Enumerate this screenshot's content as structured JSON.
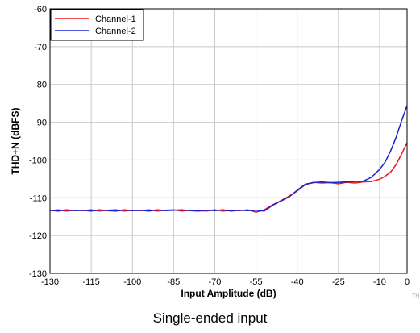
{
  "chart_data": {
    "type": "line",
    "title": "",
    "caption": "Single-ended input",
    "xlabel": "Input Amplitude (dB)",
    "ylabel": "THD+N (dBFS)",
    "xlim": [
      -130,
      0
    ],
    "ylim": [
      -130,
      -60
    ],
    "xticks": [
      -130,
      -115,
      -100,
      -85,
      -70,
      -55,
      -40,
      -25,
      -10,
      0
    ],
    "yticks": [
      -60,
      -70,
      -80,
      -90,
      -100,
      -110,
      -120,
      -130
    ],
    "grid": true,
    "legend_position": "top-left",
    "series": [
      {
        "name": "Channel-1",
        "color": "#e8171f",
        "x": [
          -130,
          -127,
          -124,
          -121,
          -118,
          -115,
          -112,
          -109,
          -106,
          -103,
          -100,
          -97,
          -94,
          -91,
          -88,
          -85,
          -82,
          -79,
          -76,
          -73,
          -70,
          -67,
          -64,
          -61,
          -58,
          -55,
          -52,
          -49,
          -46,
          -43,
          -40,
          -37,
          -34,
          -31,
          -28,
          -25,
          -22,
          -19,
          -16,
          -13,
          -10,
          -8,
          -6,
          -4,
          -2,
          0
        ],
        "y": [
          -113.4,
          -113.2,
          -113.5,
          -113.3,
          -113.4,
          -113.2,
          -113.5,
          -113.3,
          -113.2,
          -113.5,
          -113.3,
          -113.4,
          -113.2,
          -113.5,
          -113.3,
          -113.2,
          -113.5,
          -113.3,
          -113.4,
          -113.5,
          -113.2,
          -113.5,
          -113.3,
          -113.4,
          -113.2,
          -113.8,
          -113.2,
          -111.9,
          -110.8,
          -109.6,
          -108.2,
          -106.5,
          -105.9,
          -106.1,
          -106.0,
          -106.3,
          -105.9,
          -106.1,
          -105.8,
          -105.7,
          -105.1,
          -104.3,
          -103.2,
          -101.2,
          -98.4,
          -95.4
        ]
      },
      {
        "name": "Channel-2",
        "color": "#1f1fcf",
        "x": [
          -130,
          -127,
          -124,
          -121,
          -118,
          -115,
          -112,
          -109,
          -106,
          -103,
          -100,
          -97,
          -94,
          -91,
          -88,
          -85,
          -82,
          -79,
          -76,
          -73,
          -70,
          -67,
          -64,
          -61,
          -58,
          -55,
          -52,
          -49,
          -46,
          -43,
          -40,
          -37,
          -34,
          -31,
          -28,
          -25,
          -22,
          -19,
          -16,
          -13,
          -10,
          -8,
          -6,
          -4,
          -2,
          0
        ],
        "y": [
          -113.3,
          -113.5,
          -113.2,
          -113.4,
          -113.3,
          -113.5,
          -113.2,
          -113.4,
          -113.5,
          -113.2,
          -113.4,
          -113.3,
          -113.5,
          -113.2,
          -113.4,
          -113.3,
          -113.2,
          -113.4,
          -113.5,
          -113.3,
          -113.4,
          -113.2,
          -113.5,
          -113.3,
          -113.4,
          -113.3,
          -113.5,
          -112.0,
          -110.9,
          -109.8,
          -108.0,
          -106.4,
          -106.0,
          -105.8,
          -106.0,
          -105.9,
          -105.8,
          -105.7,
          -105.6,
          -104.6,
          -102.5,
          -100.6,
          -97.6,
          -94.0,
          -89.6,
          -85.6
        ]
      }
    ]
  }
}
